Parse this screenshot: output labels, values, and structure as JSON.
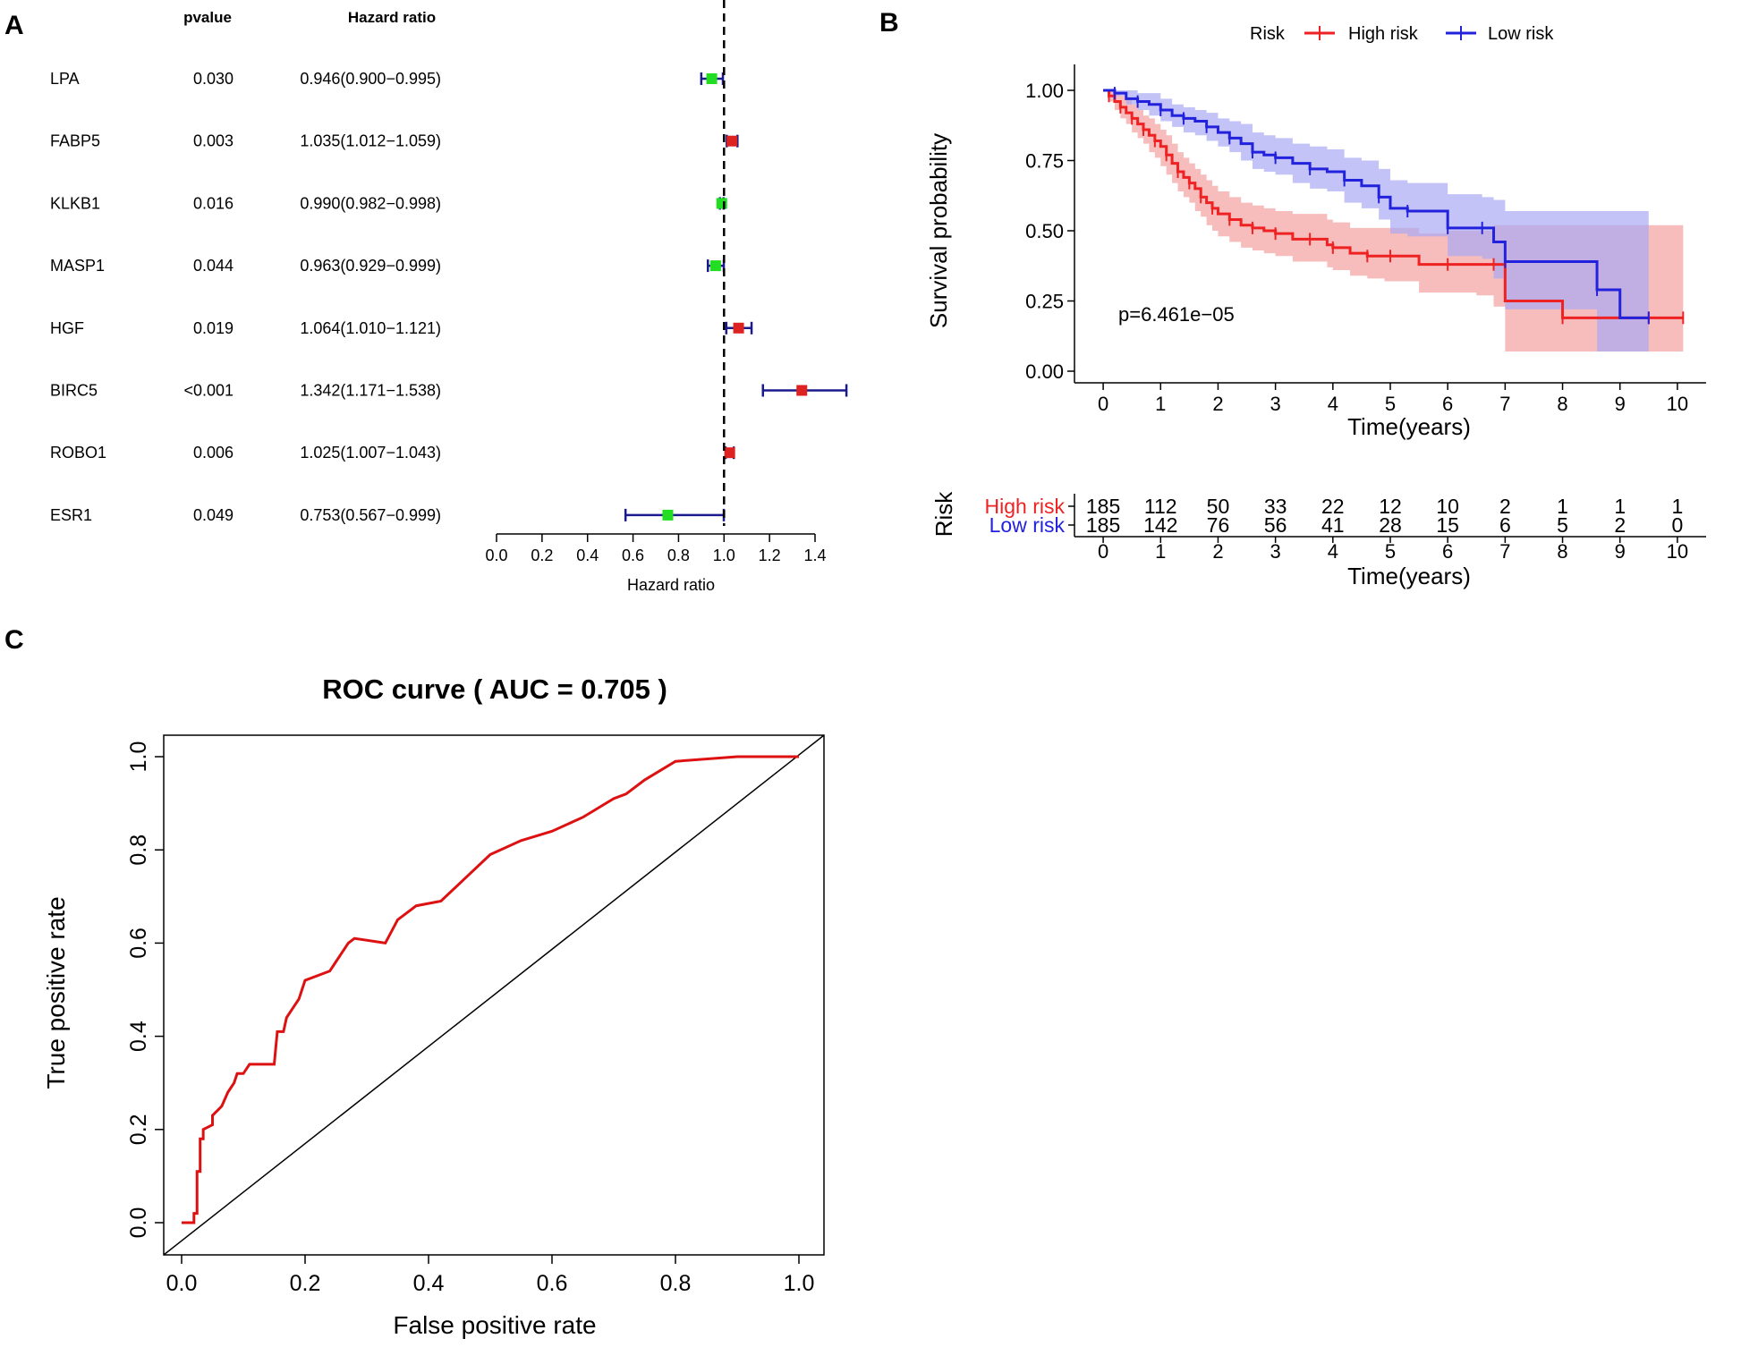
{
  "panel_labels": [
    "A",
    "B",
    "C"
  ],
  "chart_data": [
    {
      "type": "forest",
      "panel": "A",
      "headers": {
        "pvalue": "pvalue",
        "hazard_ratio": "Hazard ratio"
      },
      "xlabel": "Hazard ratio",
      "xlim": [
        0.0,
        1.4
      ],
      "xticks": [
        "0.0",
        "0.2",
        "0.4",
        "0.6",
        "0.8",
        "1.0",
        "1.2",
        "1.4"
      ],
      "reference_line": 1.0,
      "colors": {
        "protective": "#22dd22",
        "risk": "#dd2222",
        "whisker": "#1a1a8c"
      },
      "rows": [
        {
          "gene": "LPA",
          "pvalue": "0.030",
          "hr_text": "0.946(0.900−0.995)",
          "hr": 0.946,
          "lo": 0.9,
          "hi": 0.995
        },
        {
          "gene": "FABP5",
          "pvalue": "0.003",
          "hr_text": "1.035(1.012−1.059)",
          "hr": 1.035,
          "lo": 1.012,
          "hi": 1.059
        },
        {
          "gene": "KLKB1",
          "pvalue": "0.016",
          "hr_text": "0.990(0.982−0.998)",
          "hr": 0.99,
          "lo": 0.982,
          "hi": 0.998
        },
        {
          "gene": "MASP1",
          "pvalue": "0.044",
          "hr_text": "0.963(0.929−0.999)",
          "hr": 0.963,
          "lo": 0.929,
          "hi": 0.999
        },
        {
          "gene": "HGF",
          "pvalue": "0.019",
          "hr_text": "1.064(1.010−1.121)",
          "hr": 1.064,
          "lo": 1.01,
          "hi": 1.121
        },
        {
          "gene": "BIRC5",
          "pvalue": "<0.001",
          "hr_text": "1.342(1.171−1.538)",
          "hr": 1.342,
          "lo": 1.171,
          "hi": 1.538
        },
        {
          "gene": "ROBO1",
          "pvalue": "0.006",
          "hr_text": "1.025(1.007−1.043)",
          "hr": 1.025,
          "lo": 1.007,
          "hi": 1.043
        },
        {
          "gene": "ESR1",
          "pvalue": "0.049",
          "hr_text": "0.753(0.567−0.999)",
          "hr": 0.753,
          "lo": 0.567,
          "hi": 0.999
        }
      ]
    },
    {
      "type": "line",
      "subtype": "kaplan-meier",
      "panel": "B",
      "legend_title": "Risk",
      "ylabel": "Survival probability",
      "xlabel": "Time(years)",
      "xlim": [
        0,
        10
      ],
      "ylim": [
        0,
        1
      ],
      "xticks": [
        "0",
        "1",
        "2",
        "3",
        "4",
        "5",
        "6",
        "7",
        "8",
        "9",
        "10"
      ],
      "yticks": [
        "0.00",
        "0.25",
        "0.50",
        "0.75",
        "1.00"
      ],
      "pvalue_text": "p=6.461e−05",
      "series": [
        {
          "name": "High risk",
          "color": "#ee2222",
          "band_color": "#f4a0a0",
          "x": [
            0,
            0.1,
            0.2,
            0.3,
            0.4,
            0.5,
            0.6,
            0.7,
            0.8,
            0.9,
            1.0,
            1.1,
            1.2,
            1.3,
            1.4,
            1.5,
            1.6,
            1.7,
            1.8,
            1.9,
            2.0,
            2.2,
            2.4,
            2.6,
            2.8,
            3.0,
            3.3,
            3.6,
            3.9,
            4.0,
            4.3,
            4.6,
            4.9,
            5.0,
            5.5,
            6.0,
            6.5,
            6.8,
            7.0,
            8.0,
            9.0,
            9.5,
            10.0,
            10.1
          ],
          "values": [
            1.0,
            0.98,
            0.96,
            0.94,
            0.92,
            0.9,
            0.88,
            0.86,
            0.84,
            0.82,
            0.8,
            0.77,
            0.74,
            0.71,
            0.69,
            0.67,
            0.65,
            0.62,
            0.6,
            0.58,
            0.56,
            0.54,
            0.52,
            0.51,
            0.5,
            0.49,
            0.47,
            0.47,
            0.45,
            0.44,
            0.42,
            0.41,
            0.41,
            0.41,
            0.38,
            0.38,
            0.38,
            0.38,
            0.25,
            0.19,
            0.19,
            0.19,
            0.19,
            0.19
          ],
          "lower": [
            1.0,
            0.96,
            0.93,
            0.9,
            0.88,
            0.85,
            0.83,
            0.81,
            0.78,
            0.76,
            0.73,
            0.7,
            0.67,
            0.64,
            0.62,
            0.6,
            0.57,
            0.55,
            0.52,
            0.5,
            0.48,
            0.46,
            0.44,
            0.43,
            0.42,
            0.41,
            0.39,
            0.39,
            0.37,
            0.36,
            0.34,
            0.33,
            0.32,
            0.32,
            0.28,
            0.28,
            0.27,
            0.23,
            0.07,
            0.07,
            0.07,
            0.07,
            0.07,
            0.07
          ],
          "upper": [
            1.0,
            1.0,
            0.99,
            0.98,
            0.97,
            0.95,
            0.93,
            0.91,
            0.9,
            0.88,
            0.86,
            0.84,
            0.81,
            0.78,
            0.76,
            0.74,
            0.72,
            0.7,
            0.68,
            0.66,
            0.64,
            0.62,
            0.6,
            0.59,
            0.58,
            0.57,
            0.56,
            0.56,
            0.54,
            0.53,
            0.51,
            0.51,
            0.51,
            0.51,
            0.49,
            0.5,
            0.5,
            0.52,
            0.52,
            0.52,
            0.52,
            0.52,
            0.52,
            0.52
          ]
        },
        {
          "name": "Low risk",
          "color": "#2222dd",
          "band_color": "#a9a9f4",
          "x": [
            0,
            0.2,
            0.4,
            0.6,
            0.8,
            1.0,
            1.2,
            1.4,
            1.6,
            1.8,
            2.0,
            2.2,
            2.4,
            2.6,
            2.8,
            3.0,
            3.3,
            3.6,
            3.9,
            4.2,
            4.5,
            4.8,
            5.0,
            5.3,
            5.6,
            6.0,
            6.3,
            6.6,
            6.8,
            7.0,
            8.0,
            8.6,
            9.0,
            9.5
          ],
          "values": [
            1.0,
            0.99,
            0.97,
            0.96,
            0.95,
            0.93,
            0.91,
            0.9,
            0.89,
            0.87,
            0.85,
            0.83,
            0.81,
            0.78,
            0.77,
            0.76,
            0.74,
            0.72,
            0.71,
            0.68,
            0.66,
            0.62,
            0.58,
            0.57,
            0.57,
            0.51,
            0.51,
            0.51,
            0.46,
            0.39,
            0.39,
            0.29,
            0.19,
            0.19
          ],
          "lower": [
            1.0,
            0.98,
            0.95,
            0.93,
            0.91,
            0.89,
            0.87,
            0.85,
            0.84,
            0.82,
            0.8,
            0.78,
            0.75,
            0.72,
            0.71,
            0.7,
            0.67,
            0.65,
            0.64,
            0.6,
            0.58,
            0.54,
            0.49,
            0.48,
            0.48,
            0.41,
            0.41,
            0.4,
            0.33,
            0.22,
            0.22,
            0.07,
            0.07,
            0.07
          ],
          "upper": [
            1.0,
            1.0,
            1.0,
            0.99,
            0.99,
            0.97,
            0.95,
            0.94,
            0.93,
            0.92,
            0.9,
            0.89,
            0.88,
            0.85,
            0.84,
            0.83,
            0.81,
            0.8,
            0.79,
            0.76,
            0.75,
            0.72,
            0.68,
            0.67,
            0.67,
            0.63,
            0.63,
            0.62,
            0.61,
            0.57,
            0.57,
            0.57,
            0.57,
            0.57
          ]
        }
      ],
      "risk_table": {
        "ylabel": "Risk",
        "xlabel": "Time(years)",
        "rows": [
          {
            "name": "High risk",
            "color": "#ee2222",
            "counts": [
              "185",
              "112",
              "50",
              "33",
              "22",
              "12",
              "10",
              "2",
              "1",
              "1",
              "1"
            ]
          },
          {
            "name": "Low risk",
            "color": "#2222dd",
            "counts": [
              "185",
              "142",
              "76",
              "56",
              "41",
              "28",
              "15",
              "6",
              "5",
              "2",
              "0"
            ]
          }
        ]
      }
    },
    {
      "type": "line",
      "subtype": "roc",
      "panel": "C",
      "title": "ROC curve ( AUC =  0.705 )",
      "xlabel": "False positive rate",
      "ylabel": "True positive rate",
      "xlim": [
        0,
        1
      ],
      "ylim": [
        0,
        1
      ],
      "xticks": [
        "0.0",
        "0.2",
        "0.4",
        "0.6",
        "0.8",
        "1.0"
      ],
      "yticks": [
        "0.0",
        "0.2",
        "0.4",
        "0.6",
        "0.8",
        "1.0"
      ],
      "auc": 0.705,
      "color": "#dd1111",
      "points": [
        [
          0,
          0
        ],
        [
          0.02,
          0
        ],
        [
          0.02,
          0.02
        ],
        [
          0.025,
          0.02
        ],
        [
          0.025,
          0.11
        ],
        [
          0.03,
          0.11
        ],
        [
          0.03,
          0.18
        ],
        [
          0.035,
          0.18
        ],
        [
          0.035,
          0.2
        ],
        [
          0.05,
          0.21
        ],
        [
          0.05,
          0.23
        ],
        [
          0.065,
          0.25
        ],
        [
          0.075,
          0.28
        ],
        [
          0.085,
          0.3
        ],
        [
          0.09,
          0.32
        ],
        [
          0.1,
          0.32
        ],
        [
          0.11,
          0.34
        ],
        [
          0.15,
          0.34
        ],
        [
          0.155,
          0.41
        ],
        [
          0.165,
          0.41
        ],
        [
          0.17,
          0.44
        ],
        [
          0.18,
          0.46
        ],
        [
          0.19,
          0.48
        ],
        [
          0.2,
          0.52
        ],
        [
          0.22,
          0.53
        ],
        [
          0.24,
          0.54
        ],
        [
          0.25,
          0.56
        ],
        [
          0.27,
          0.6
        ],
        [
          0.28,
          0.61
        ],
        [
          0.33,
          0.6
        ],
        [
          0.35,
          0.65
        ],
        [
          0.38,
          0.68
        ],
        [
          0.42,
          0.69
        ],
        [
          0.46,
          0.74
        ],
        [
          0.5,
          0.79
        ],
        [
          0.55,
          0.82
        ],
        [
          0.6,
          0.84
        ],
        [
          0.65,
          0.87
        ],
        [
          0.7,
          0.91
        ],
        [
          0.72,
          0.92
        ],
        [
          0.75,
          0.95
        ],
        [
          0.8,
          0.99
        ],
        [
          0.9,
          1.0
        ],
        [
          0.93,
          1.0
        ],
        [
          1.0,
          1.0
        ]
      ]
    }
  ]
}
